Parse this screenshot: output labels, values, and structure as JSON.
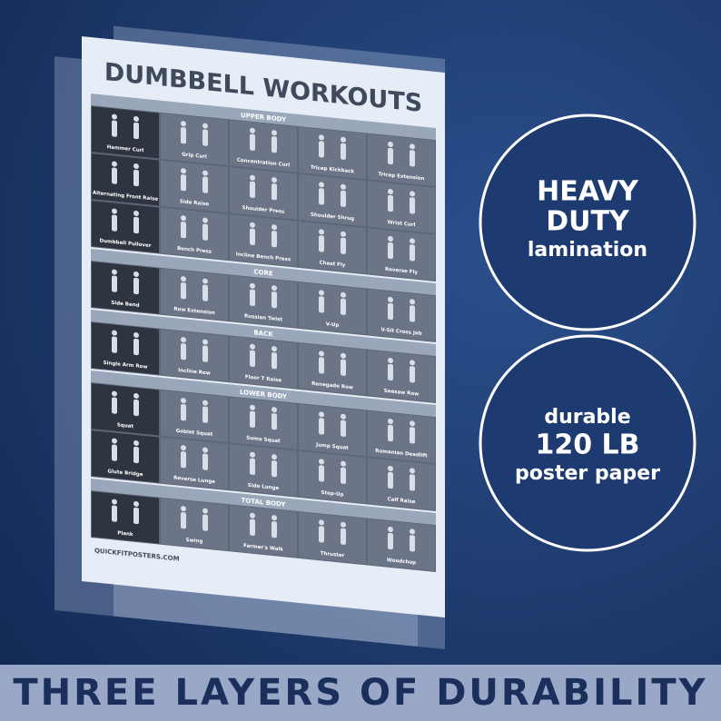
{
  "poster": {
    "title": "DUMBBELL WORKOUTS",
    "sections": [
      {
        "name": "UPPER BODY",
        "exercises": [
          "Hammer Curl",
          "Grip Curl",
          "Concentration Curl",
          "Tricep Kickback",
          "Tricep Extension",
          "Alternating Front Raise",
          "Side Raise",
          "Shoulder Press",
          "Shoulder Shrug",
          "Wrist Curl",
          "Dumbbell Pullover",
          "Bench Press",
          "Incline Bench Press",
          "Chest Fly",
          "Reverse Fly"
        ]
      },
      {
        "name": "CORE",
        "exercises": [
          "Side Bend",
          "Row Extension",
          "Russian Twist",
          "V-Up",
          "V-Sit Cross Jab"
        ]
      },
      {
        "name": "BACK",
        "exercises": [
          "Single Arm Row",
          "Incline Row",
          "Floor T Raise",
          "Renegade Row",
          "Seesaw Row"
        ]
      },
      {
        "name": "LOWER BODY",
        "exercises": [
          "Squat",
          "Goblet Squat",
          "Sumo Squat",
          "Jump Squat",
          "Romanian Deadlift",
          "Glute Bridge",
          "Reverse Lunge",
          "Side Lunge",
          "Step-Up",
          "Calf Raise"
        ]
      },
      {
        "name": "TOTAL BODY",
        "exercises": [
          "Plank",
          "Swing",
          "Farmer's Walk",
          "Thruster",
          "Woodchop"
        ]
      }
    ],
    "website": "QUICKFITPOSTERS.COM"
  },
  "badges": [
    {
      "lines": [
        "HEAVY",
        "DUTY",
        "lamination"
      ]
    },
    {
      "lines": [
        "durable",
        "120 LB",
        "poster paper"
      ]
    }
  ],
  "banner": "THREE LAYERS OF DURABILITY"
}
